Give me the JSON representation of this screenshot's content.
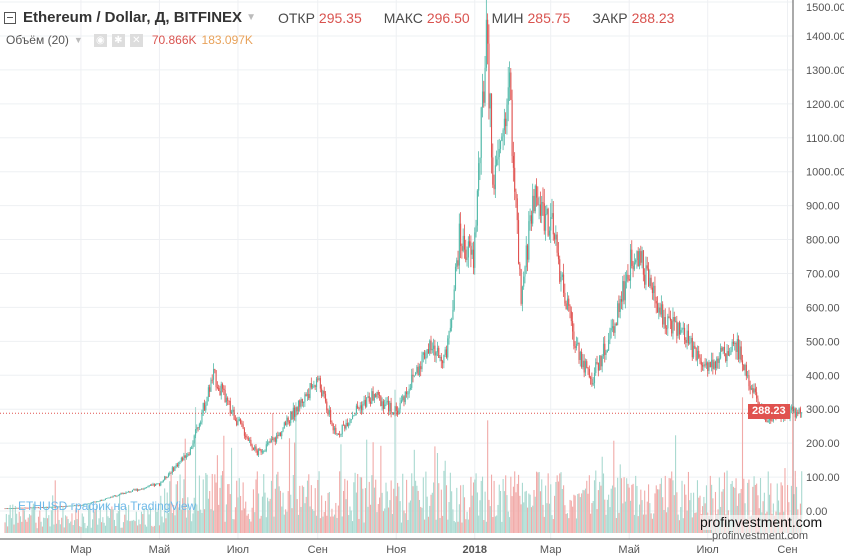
{
  "header": {
    "symbol": "Ethereum / Dollar, Д, BITFINEX",
    "open_label": "ОТКР",
    "open": "295.35",
    "high_label": "МАКС",
    "high": "296.50",
    "low_label": "МИН",
    "low": "285.75",
    "close_label": "ЗАКР",
    "close": "288.23"
  },
  "volume_legend": {
    "label": "Объём (20)",
    "value1": "70.866K",
    "value2": "183.097K"
  },
  "watermark": "ETHUSD график на TradingView",
  "site": "profinvestment.com",
  "price_tag": "288.23",
  "colors": {
    "up": "#53b9a9",
    "down": "#e0524f",
    "vol_up": "#a9d9d0",
    "vol_down": "#f1aaa8"
  },
  "chart_data": {
    "type": "candlestick",
    "title": "Ethereum / Dollar, Д, BITFINEX",
    "y_ticks": [
      "1500.00",
      "1400.00",
      "1300.00",
      "1200.00",
      "1100.00",
      "1000.00",
      "900.00",
      "800.00",
      "700.00",
      "600.00",
      "500.00",
      "400.00",
      "300.00",
      "200.00",
      "100.00",
      "0.00"
    ],
    "ylim": [
      0,
      1500
    ],
    "x_ticks": [
      "Мар",
      "Май",
      "Июл",
      "Сен",
      "Ноя",
      "2018",
      "Мар",
      "Май",
      "Июл",
      "Сен"
    ],
    "last_price": 288.23,
    "close_path": [
      [
        "2017-01-01",
        8
      ],
      [
        "2017-02-01",
        11
      ],
      [
        "2017-03-01",
        17
      ],
      [
        "2017-03-15",
        30
      ],
      [
        "2017-04-01",
        50
      ],
      [
        "2017-05-01",
        80
      ],
      [
        "2017-05-25",
        180
      ],
      [
        "2017-06-12",
        400
      ],
      [
        "2017-06-25",
        300
      ],
      [
        "2017-07-16",
        170
      ],
      [
        "2017-08-01",
        220
      ],
      [
        "2017-08-15",
        300
      ],
      [
        "2017-09-01",
        390
      ],
      [
        "2017-09-15",
        220
      ],
      [
        "2017-10-01",
        300
      ],
      [
        "2017-10-15",
        340
      ],
      [
        "2017-11-01",
        290
      ],
      [
        "2017-11-25",
        480
      ],
      [
        "2017-12-10",
        450
      ],
      [
        "2017-12-20",
        800
      ],
      [
        "2017-12-31",
        740
      ],
      [
        "2018-01-10",
        1380
      ],
      [
        "2018-01-16",
        950
      ],
      [
        "2018-01-28",
        1250
      ],
      [
        "2018-02-06",
        600
      ],
      [
        "2018-02-15",
        930
      ],
      [
        "2018-03-01",
        850
      ],
      [
        "2018-03-18",
        520
      ],
      [
        "2018-04-01",
        380
      ],
      [
        "2018-04-15",
        500
      ],
      [
        "2018-04-30",
        700
      ],
      [
        "2018-05-06",
        780
      ],
      [
        "2018-05-25",
        580
      ],
      [
        "2018-06-12",
        520
      ],
      [
        "2018-06-28",
        430
      ],
      [
        "2018-07-24",
        480
      ],
      [
        "2018-08-14",
        270
      ],
      [
        "2018-09-01",
        290
      ],
      [
        "2018-09-12",
        288
      ]
    ]
  }
}
